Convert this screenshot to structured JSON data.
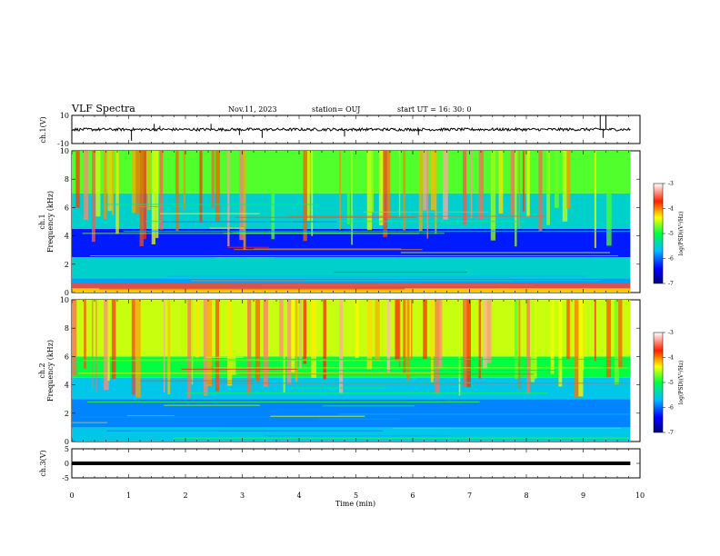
{
  "header": {
    "title": "VLF Spectra",
    "date": "Nov.11, 2023",
    "station": "station= OUJ",
    "start_time": "start  UT =   16: 30: 0"
  },
  "chart_data": [
    {
      "type": "line",
      "panel": "ch1-waveform",
      "ylabel": "ch.1(V)",
      "ylim": [
        -10,
        10
      ],
      "yticks": [
        "10",
        "-10"
      ],
      "x_range_min": [
        0,
        9.83
      ],
      "baseline_v": 0,
      "noise_amplitude_v": 1,
      "spikes": [
        {
          "t": 1.05,
          "v": -8
        },
        {
          "t": 1.45,
          "v": 4
        },
        {
          "t": 1.55,
          "v": 2.5
        },
        {
          "t": 2.45,
          "v": 4
        },
        {
          "t": 2.95,
          "v": -4
        },
        {
          "t": 3.35,
          "v": -6
        },
        {
          "t": 4.8,
          "v": -5
        },
        {
          "t": 6.1,
          "v": -4
        },
        {
          "t": 9.3,
          "v": 10
        },
        {
          "t": 9.35,
          "v": -6
        },
        {
          "t": 9.4,
          "v": 10
        }
      ],
      "line_color": "#000000"
    },
    {
      "type": "heatmap",
      "panel": "ch1-spectrogram",
      "ylabel_top": "ch.1",
      "ylabel": "Frequency (kHz)",
      "ylim": [
        0,
        10
      ],
      "yticks": [
        "0",
        "2",
        "4",
        "6",
        "8",
        "10"
      ],
      "x_range_min": [
        0,
        9.83
      ],
      "bands_kHz": [
        {
          "f0": 0.0,
          "f1": 0.3,
          "log_psd": -4.2
        },
        {
          "f0": 0.3,
          "f1": 1.0,
          "log_psd": -5.8
        },
        {
          "f0": 1.0,
          "f1": 2.5,
          "log_psd": -5.5
        },
        {
          "f0": 2.5,
          "f1": 4.5,
          "log_psd": -6.3
        },
        {
          "f0": 4.5,
          "f1": 7.0,
          "log_psd": -5.5
        },
        {
          "f0": 7.0,
          "f1": 10.0,
          "log_psd": -4.8
        }
      ],
      "colorbar": {
        "label": "log(PSD)(V²/Hz)",
        "min": -7,
        "max": -3,
        "ticks": [
          "-3",
          "-4",
          "-5",
          "-6",
          "-7"
        ]
      }
    },
    {
      "type": "heatmap",
      "panel": "ch2-spectrogram",
      "ylabel_top": "ch.2",
      "ylabel": "Frequency (kHz)",
      "ylim": [
        0,
        10
      ],
      "yticks": [
        "0",
        "2",
        "4",
        "6",
        "8",
        "10"
      ],
      "x_range_min": [
        0,
        9.83
      ],
      "bands_kHz": [
        {
          "f0": 0.0,
          "f1": 1.0,
          "log_psd": -5.6
        },
        {
          "f0": 1.0,
          "f1": 3.0,
          "log_psd": -5.9
        },
        {
          "f0": 3.0,
          "f1": 4.5,
          "log_psd": -5.6
        },
        {
          "f0": 4.5,
          "f1": 6.0,
          "log_psd": -5.0
        },
        {
          "f0": 6.0,
          "f1": 10.0,
          "log_psd": -4.5
        }
      ],
      "colorbar": {
        "label": "log(PSD)(V²/Hz)",
        "min": -7,
        "max": -3,
        "ticks": [
          "-3",
          "-4",
          "-5",
          "-6",
          "-7"
        ]
      }
    },
    {
      "type": "line",
      "panel": "ch3-waveform",
      "ylabel": "ch.3(V)",
      "ylim": [
        -5,
        5
      ],
      "yticks": [
        "5",
        "0",
        "-5"
      ],
      "x_range_min": [
        0,
        9.83
      ],
      "constant_v": 0,
      "line_color": "#000000"
    }
  ],
  "xaxis": {
    "label": "Time (min)",
    "min": 0,
    "max": 10,
    "ticks": [
      "0",
      "1",
      "2",
      "3",
      "4",
      "5",
      "6",
      "7",
      "8",
      "9",
      "10"
    ]
  }
}
